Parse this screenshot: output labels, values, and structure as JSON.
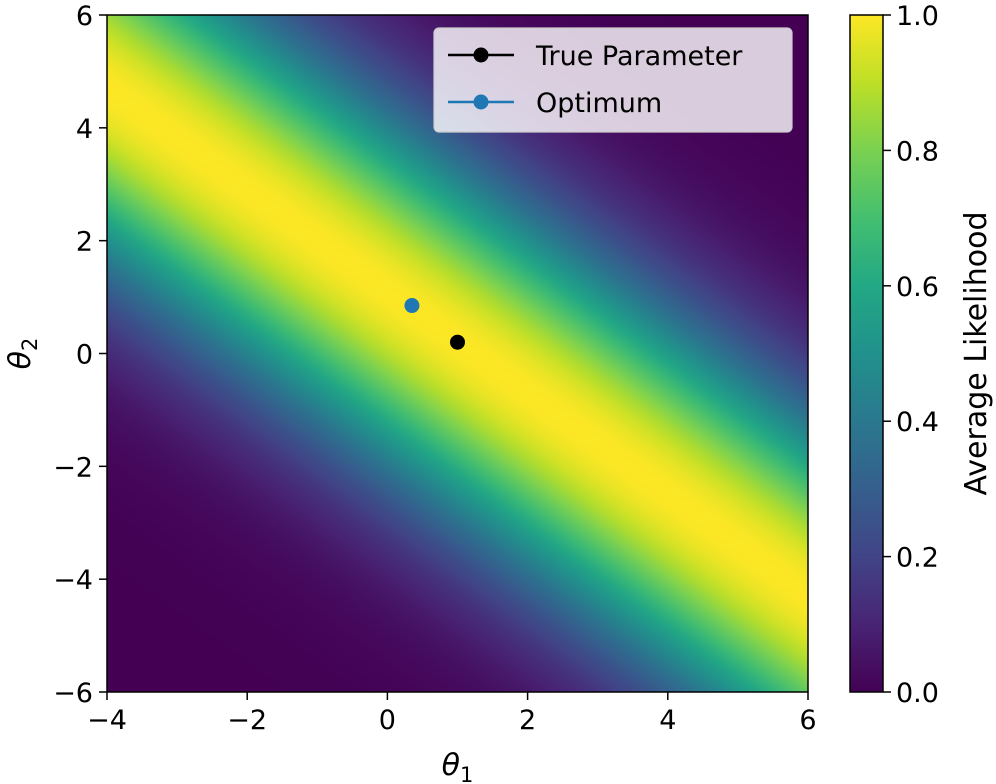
{
  "chart_data": {
    "type": "heatmap",
    "title": "",
    "xlabel": "θ",
    "xlabel_sub": "1",
    "ylabel": "θ",
    "ylabel_sub": "2",
    "xlim": [
      -4,
      6
    ],
    "ylim": [
      -6,
      6
    ],
    "x_ticks": [
      -4,
      -2,
      0,
      2,
      4,
      6
    ],
    "y_ticks": [
      -6,
      -4,
      -2,
      0,
      2,
      4,
      6
    ],
    "x_tick_labels": [
      "−4",
      "−2",
      "0",
      "2",
      "4",
      "6"
    ],
    "y_tick_labels": [
      "−6",
      "−4",
      "−2",
      "0",
      "2",
      "4",
      "6"
    ],
    "colormap": "viridis",
    "colorbar": {
      "label": "Average Likelihood",
      "range": [
        0.0,
        1.0
      ],
      "ticks": [
        0.0,
        0.2,
        0.4,
        0.6,
        0.8,
        1.0
      ],
      "tick_labels": [
        "0.0",
        "0.2",
        "0.4",
        "0.6",
        "0.8",
        "1.0"
      ]
    },
    "ridge": {
      "description_values": {
        "peak_line_intercept": 1.1,
        "peak_line_slope": -0.9
      }
    },
    "series": [
      {
        "name": "True Parameter",
        "x": [
          1.0
        ],
        "y": [
          0.2
        ],
        "color": "#000000"
      },
      {
        "name": "Optimum",
        "x": [
          0.35
        ],
        "y": [
          0.85
        ],
        "color": "#1f77b4"
      }
    ],
    "legend_placement": "top-right",
    "grid": false
  }
}
